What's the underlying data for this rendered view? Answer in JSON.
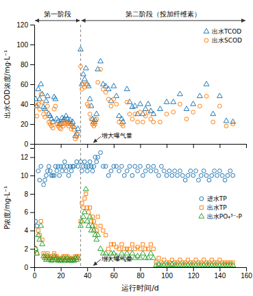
{
  "chart_data": [
    {
      "type": "scatter",
      "ylabel": "出水COD浓度/mg·L⁻¹",
      "xlim": [
        0,
        160
      ],
      "xticks": [
        0,
        20,
        40,
        60,
        80,
        100,
        120,
        140,
        160
      ],
      "ylim": [
        0,
        120
      ],
      "yticks": [
        0,
        20,
        40,
        60,
        80,
        100,
        120
      ],
      "tick_labels": "y",
      "legend": "upper right",
      "phase_boundary": 35,
      "phases": [
        {
          "label": "第一阶段",
          "from": 0,
          "to": 35
        },
        {
          "label": "第二阶段（投加纤维素）",
          "from": 35,
          "to": 160
        }
      ],
      "annotations": [
        {
          "text": "增大曝气量",
          "x": 44,
          "y": 0.5
        }
      ],
      "series": [
        {
          "name": "出水TCOD",
          "marker": "triangle",
          "x": [
            1,
            2,
            3,
            4,
            5,
            6,
            7,
            8,
            9,
            10,
            11,
            12,
            13,
            14,
            15,
            16,
            17,
            18,
            19,
            20,
            21,
            22,
            23,
            24,
            25,
            26,
            27,
            28,
            29,
            30,
            31,
            32,
            33,
            35,
            36,
            37,
            38,
            39,
            40,
            41,
            42,
            43,
            44,
            45,
            46,
            47,
            48,
            50,
            52,
            54,
            56,
            58,
            60,
            62,
            64,
            66,
            67,
            70,
            72,
            74,
            76,
            78,
            80,
            82,
            84,
            86,
            88,
            90,
            95,
            100,
            105,
            110,
            115,
            120,
            125,
            130,
            135,
            140,
            145,
            150
          ],
          "values": [
            45,
            38,
            55,
            45,
            60,
            50,
            37,
            35,
            43,
            48,
            30,
            28,
            25,
            22,
            47,
            45,
            25,
            23,
            20,
            20,
            26,
            24,
            25,
            28,
            25,
            22,
            24,
            20,
            22,
            17,
            8,
            10,
            15,
            95,
            60,
            70,
            65,
            76,
            60,
            58,
            45,
            38,
            25,
            22,
            24,
            30,
            75,
            83,
            60,
            58,
            55,
            43,
            58,
            48,
            28,
            25,
            22,
            55,
            42,
            37,
            38,
            30,
            40,
            30,
            35,
            40,
            33,
            30,
            35,
            42,
            42,
            50,
            35,
            40,
            48,
            60,
            30,
            48,
            23,
            22
          ]
        },
        {
          "name": "出水SCOD",
          "marker": "circle",
          "x": [
            1,
            2,
            3,
            4,
            5,
            6,
            7,
            8,
            9,
            10,
            11,
            12,
            13,
            14,
            15,
            16,
            17,
            18,
            19,
            20,
            21,
            22,
            23,
            24,
            25,
            26,
            27,
            28,
            29,
            30,
            31,
            32,
            33,
            35,
            36,
            37,
            38,
            39,
            40,
            41,
            42,
            43,
            44,
            45,
            46,
            47,
            48,
            50,
            52,
            54,
            56,
            58,
            60,
            62,
            64,
            66,
            67,
            70,
            72,
            74,
            76,
            78,
            80,
            82,
            84,
            86,
            88,
            90,
            95,
            100,
            105,
            110,
            115,
            120,
            125,
            130,
            135,
            140,
            145,
            150
          ],
          "values": [
            38,
            28,
            40,
            35,
            50,
            42,
            30,
            27,
            33,
            38,
            22,
            20,
            18,
            16,
            35,
            38,
            20,
            18,
            16,
            15,
            20,
            18,
            20,
            22,
            20,
            18,
            20,
            15,
            18,
            14,
            5,
            7,
            10,
            78,
            55,
            60,
            57,
            60,
            40,
            38,
            30,
            25,
            20,
            18,
            20,
            25,
            62,
            75,
            55,
            52,
            45,
            38,
            45,
            40,
            22,
            20,
            18,
            42,
            30,
            25,
            30,
            22,
            32,
            22,
            28,
            32,
            25,
            22,
            22,
            30,
            32,
            40,
            25,
            32,
            38,
            48,
            22,
            38,
            18,
            20
          ]
        }
      ]
    },
    {
      "type": "scatter",
      "ylabel": "P浓度/mg·L⁻¹",
      "xlabel": "运行时间/d",
      "xlim": [
        0,
        160
      ],
      "xticks": [
        0,
        20,
        40,
        60,
        80,
        100,
        120,
        140,
        160
      ],
      "ylim": [
        0,
        13
      ],
      "yticks": [
        0,
        2,
        4,
        6,
        8,
        10,
        12
      ],
      "legend": "center right",
      "phase_boundary": 35,
      "annotations": [
        {
          "text": "增大曝气量",
          "x": 44,
          "y": 0.1
        }
      ],
      "series": [
        {
          "name": "进水TP",
          "marker": "circle",
          "x": [
            1,
            2,
            3,
            4,
            5,
            7,
            8,
            9,
            10,
            11,
            12,
            13,
            14,
            15,
            16,
            17,
            18,
            19,
            20,
            21,
            22,
            23,
            24,
            25,
            26,
            27,
            28,
            29,
            30,
            32,
            33,
            35,
            36,
            37,
            38,
            39,
            40,
            41,
            42,
            43,
            44,
            45,
            46,
            47,
            48,
            50,
            52,
            54,
            56,
            58,
            60,
            62,
            64,
            66,
            68,
            70,
            72,
            74,
            76,
            78,
            80,
            82,
            84,
            86,
            88,
            90,
            92,
            94,
            96,
            98,
            100,
            102,
            104,
            106,
            108,
            110,
            112,
            114,
            116,
            118,
            120,
            122,
            124,
            126,
            128,
            130,
            132,
            134,
            136,
            138,
            140,
            142,
            144,
            146,
            148,
            150
          ],
          "values": [
            5,
            4.5,
            10.5,
            9.5,
            11,
            9,
            9.5,
            10,
            10.5,
            11,
            10.5,
            10,
            10,
            10,
            11,
            10.5,
            11,
            10,
            11,
            10.5,
            11,
            11.5,
            10.5,
            11,
            10,
            11,
            10.5,
            11,
            11,
            11.5,
            11,
            11.5,
            10.5,
            11,
            11.5,
            11,
            10.5,
            11,
            11.5,
            11,
            10.5,
            11,
            12,
            11.5,
            12,
            12.5,
            11,
            11,
            10,
            10.5,
            11,
            11,
            10.5,
            11,
            10,
            10.5,
            11,
            10,
            11,
            10.5,
            11,
            10,
            10.5,
            11,
            10.5,
            11,
            10.5,
            10,
            11,
            10.5,
            10,
            10.5,
            10,
            10.5,
            10,
            10.5,
            10,
            9.5,
            10,
            10.5,
            10,
            10.5,
            9.5,
            10,
            10.5,
            10,
            9.5,
            10,
            10.5,
            10,
            10.5,
            10,
            9.5,
            10,
            10.5,
            10
          ]
        },
        {
          "name": "出水TP",
          "marker": "square",
          "x": [
            1,
            2,
            3,
            4,
            5,
            6,
            7,
            8,
            9,
            10,
            11,
            12,
            13,
            14,
            15,
            16,
            17,
            18,
            19,
            20,
            21,
            22,
            23,
            24,
            25,
            26,
            27,
            28,
            29,
            30,
            31,
            32,
            33,
            35,
            36,
            37,
            38,
            39,
            40,
            41,
            42,
            43,
            44,
            45,
            46,
            47,
            48,
            50,
            52,
            54,
            56,
            58,
            60,
            62,
            64,
            66,
            68,
            70,
            72,
            74,
            76,
            78,
            80,
            82,
            84,
            86,
            88,
            90,
            92,
            94,
            96,
            98,
            100,
            102,
            104,
            106,
            108,
            110,
            112,
            114,
            116,
            118,
            120,
            122,
            124,
            126,
            128,
            130,
            132,
            134,
            136,
            138,
            140,
            142,
            144,
            146,
            148,
            150
          ],
          "values": [
            2,
            1.5,
            4,
            3.5,
            5,
            3,
            1.5,
            1.2,
            1,
            1.5,
            1,
            1.2,
            0.8,
            1,
            1.5,
            1,
            1.2,
            0.8,
            1,
            0.8,
            1,
            1.2,
            0.8,
            1,
            1.2,
            0.8,
            1,
            0.8,
            1,
            0.8,
            1.2,
            1,
            1.2,
            5,
            7,
            6.5,
            7.5,
            8,
            6.5,
            6,
            6.5,
            5,
            5.5,
            5,
            4.5,
            4,
            5.5,
            4.5,
            4,
            3.5,
            2,
            2.5,
            2.5,
            2.2,
            2,
            2.5,
            2,
            2,
            2,
            2.5,
            2,
            2.2,
            2,
            2.5,
            2,
            2,
            2.5,
            2,
            0.5,
            1,
            0.5,
            0.8,
            0.5,
            0.5,
            0.8,
            0.5,
            0.5,
            0.8,
            0.5,
            0.5,
            0.8,
            0.5,
            0.5,
            0.8,
            0.5,
            0.5,
            0.8,
            0.5,
            0.5,
            0.8,
            0.5,
            0.5,
            0.8,
            0.5,
            0.5,
            0.5,
            0.5,
            0.5
          ]
        },
        {
          "name": "出水PO₄³⁻-P",
          "marker": "triangle",
          "x": [
            1,
            2,
            3,
            4,
            5,
            6,
            7,
            8,
            9,
            10,
            11,
            12,
            13,
            14,
            15,
            16,
            17,
            18,
            19,
            20,
            21,
            22,
            23,
            24,
            25,
            26,
            27,
            28,
            29,
            30,
            31,
            32,
            33,
            35,
            36,
            37,
            38,
            39,
            40,
            41,
            42,
            43,
            44,
            45,
            46,
            47,
            48,
            50,
            52,
            54,
            56,
            58,
            60,
            62,
            64,
            66,
            68,
            70,
            72,
            74,
            76,
            78,
            80,
            82,
            84,
            86,
            88,
            90,
            92,
            94,
            96,
            98,
            100,
            102,
            104,
            106,
            108,
            110,
            112,
            114,
            116,
            118,
            120,
            122,
            124,
            126,
            128,
            130,
            132,
            134,
            136,
            138,
            140,
            142,
            144,
            146,
            148,
            150
          ],
          "values": [
            2,
            1.5,
            3.5,
            3,
            4.5,
            2.5,
            1.2,
            1,
            0.8,
            1.2,
            0.8,
            1,
            0.7,
            0.8,
            1.2,
            0.8,
            1,
            0.7,
            0.8,
            0.7,
            0.8,
            1,
            0.7,
            0.8,
            1,
            0.7,
            0.8,
            0.7,
            0.8,
            0.7,
            1,
            0.8,
            1,
            4.5,
            5,
            5.5,
            6,
            8.5,
            5,
            4.5,
            5.5,
            4,
            4.5,
            4,
            3.5,
            3,
            3.5,
            2,
            1.5,
            1.5,
            1,
            1.5,
            1.5,
            1.2,
            1,
            1.5,
            1,
            1.5,
            1,
            1.5,
            1,
            1.2,
            1,
            1.5,
            1,
            1,
            1.5,
            1,
            0.2,
            0.3,
            0.2,
            0.2,
            0.2,
            0.2,
            0.3,
            0.2,
            0.2,
            0.2,
            0.2,
            0.2,
            0.2,
            0.2,
            0.2,
            0.2,
            0.2,
            0.2,
            0.2,
            0.2,
            0.2,
            0.2,
            0.2,
            0.2,
            0.2,
            0.2,
            0.2,
            0.2,
            0.2,
            0.2
          ]
        }
      ]
    }
  ]
}
